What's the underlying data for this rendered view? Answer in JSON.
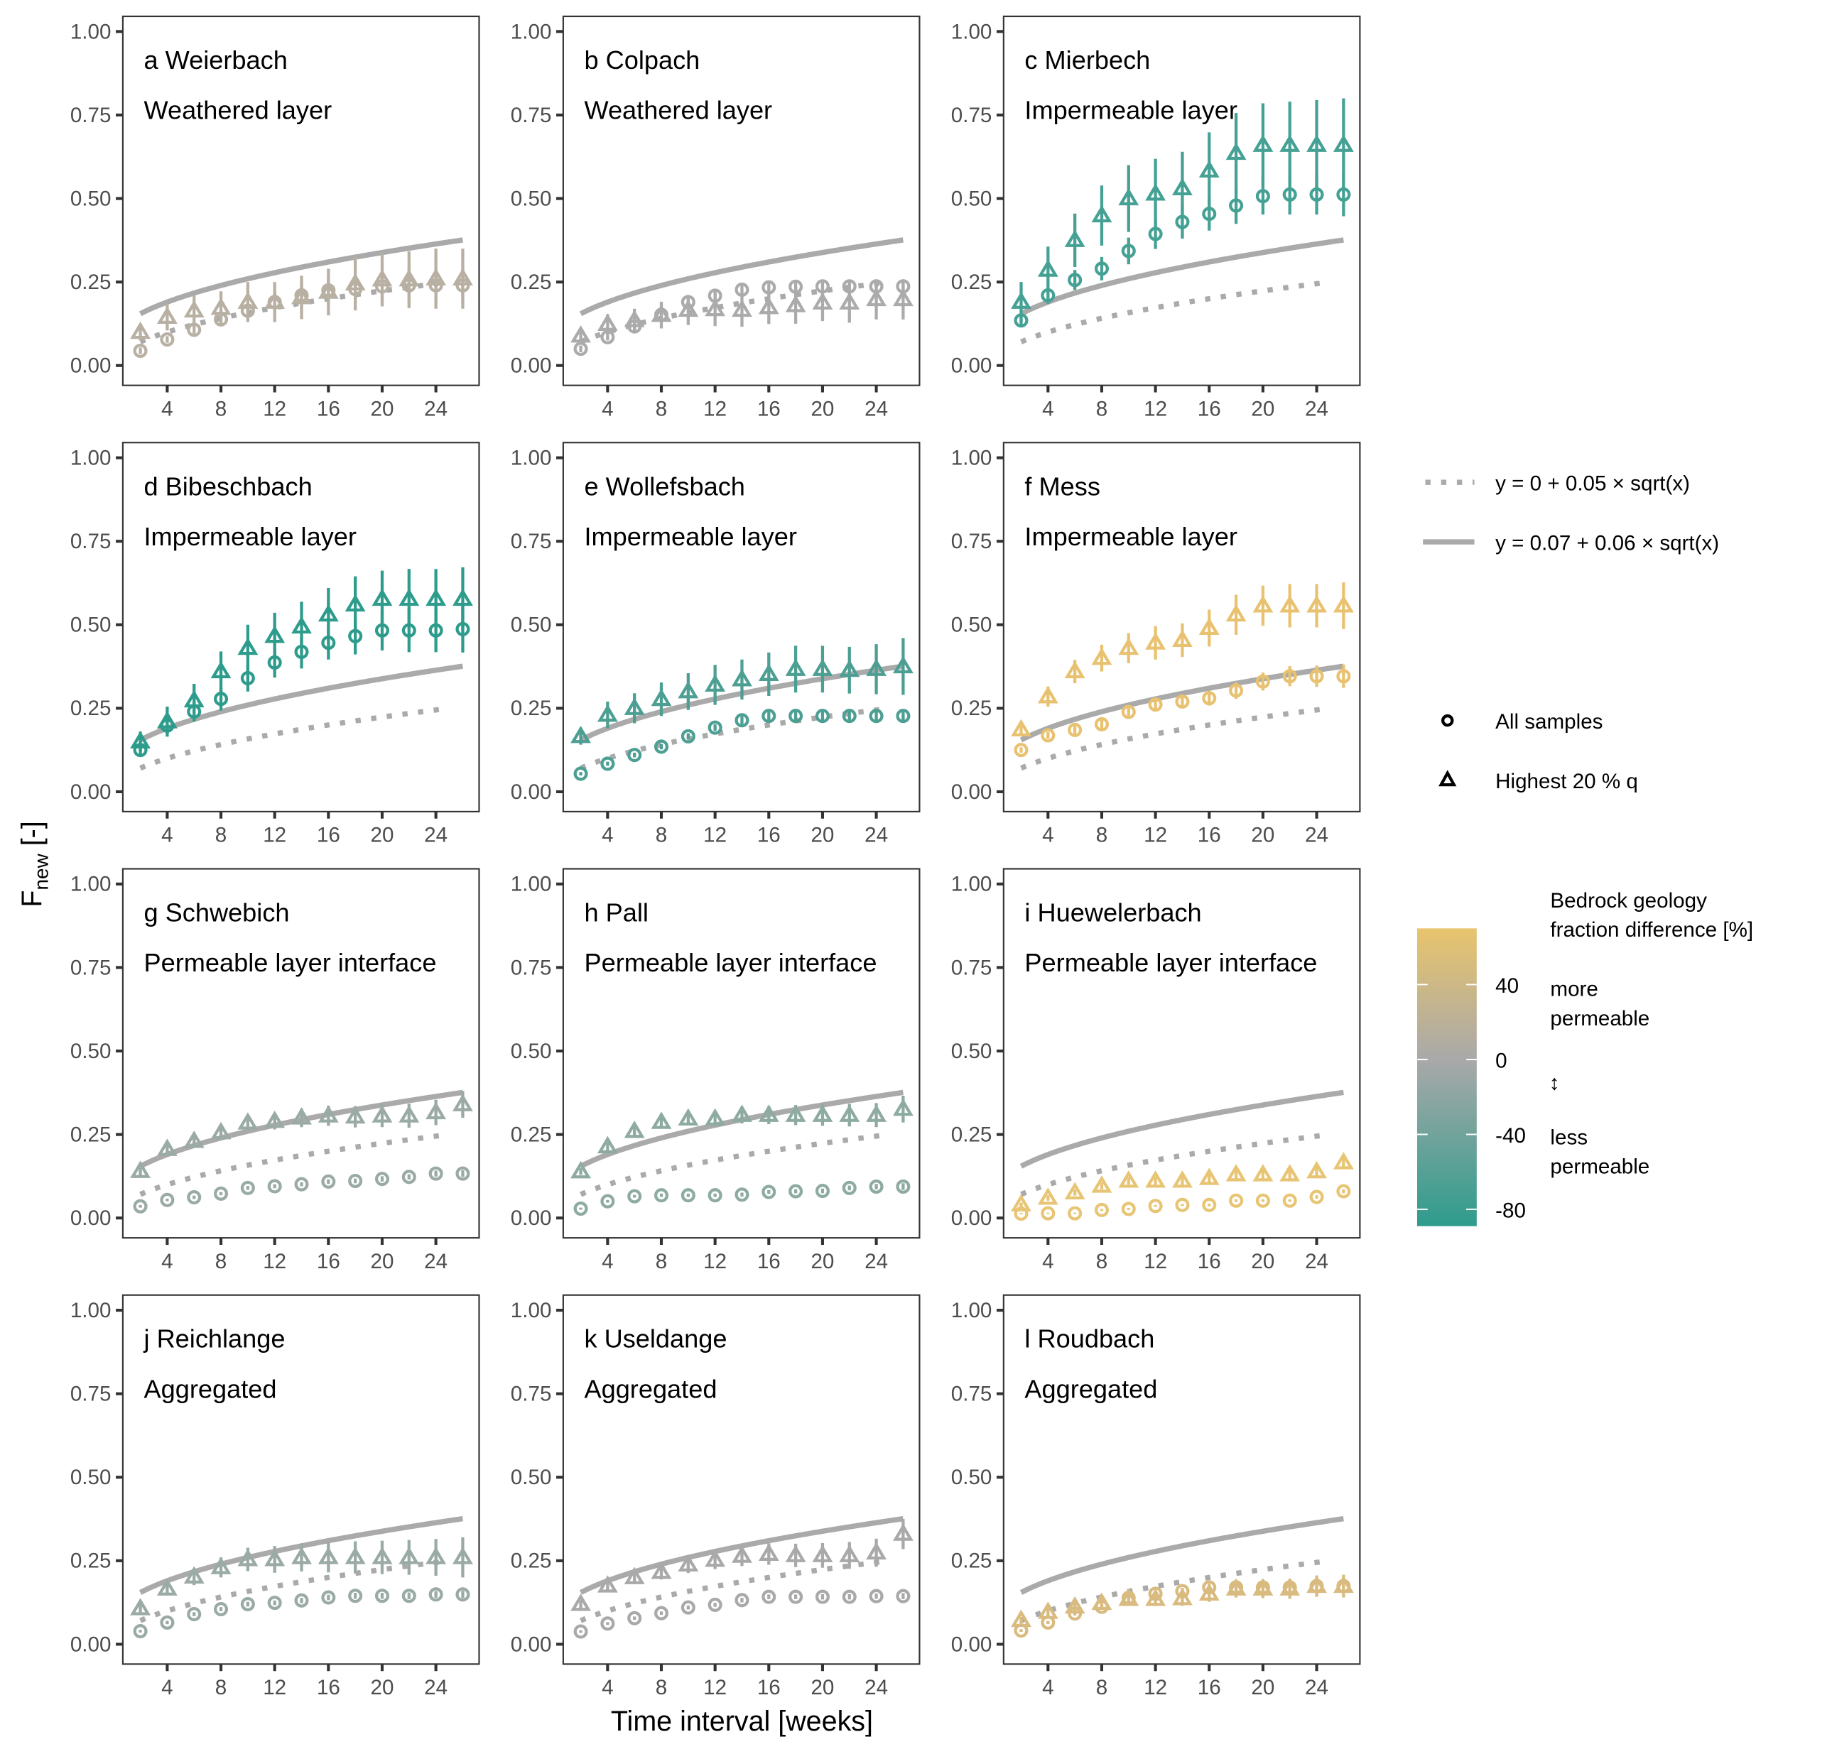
{
  "figure": {
    "ylabel_main": "F",
    "ylabel_sub": "new",
    "ylabel_unit": " [-]",
    "xlabel": "Time interval [weeks]"
  },
  "legend": {
    "fits": [
      {
        "label": "y = 0 + 0.05 × sqrt(x)",
        "style": "dotted",
        "intercept": 0,
        "slope": 0.05
      },
      {
        "label": "y = 0.07 + 0.06 × sqrt(x)",
        "style": "solid",
        "intercept": 0.07,
        "slope": 0.06
      }
    ],
    "shapes": [
      {
        "label": "All samples",
        "shape": "circle"
      },
      {
        "label": "Highest 20 % q",
        "shape": "triangle"
      }
    ],
    "colorbar": {
      "title_line1": "Bedrock geology",
      "title_line2": "fraction difference [%]",
      "ticks": [
        "40",
        "0",
        "-40",
        "-80"
      ],
      "tick_values": [
        40,
        0,
        -40,
        -80
      ],
      "range": [
        -89,
        70
      ],
      "colors": {
        "high": "#e8c46c",
        "mid": "#a9a9a9",
        "low": "#2e9c8c"
      },
      "annotation_more_1": "more",
      "annotation_more_2": "permeable",
      "arrow": "↕",
      "annotation_less_1": "less",
      "annotation_less_2": "permeable"
    }
  },
  "chart_data": {
    "type": "scatter",
    "xlabel": "Time interval [weeks]",
    "ylabel": "F_new [-]",
    "xlim": [
      1,
      27
    ],
    "ylim": [
      -0.05,
      1.05
    ],
    "x_ticks": [
      4,
      8,
      12,
      16,
      20,
      24
    ],
    "y_ticks": [
      "0.00",
      "0.25",
      "0.50",
      "0.75",
      "1.00"
    ],
    "y_tick_values": [
      0,
      0.25,
      0.5,
      0.75,
      1.0
    ],
    "x": [
      2,
      4,
      6,
      8,
      10,
      12,
      14,
      16,
      18,
      20,
      22,
      24,
      26
    ],
    "reference_lines": [
      {
        "name": "y = 0 + 0.05 × sqrt(x)",
        "style": "dotted",
        "intercept": 0,
        "slope": 0.05,
        "x_range": [
          2,
          25
        ]
      },
      {
        "name": "y = 0.07 + 0.06 × sqrt(x)",
        "style": "solid",
        "intercept": 0.07,
        "slope": 0.06,
        "x_range": [
          2,
          26
        ]
      }
    ],
    "panels": [
      {
        "id": "a",
        "title": "a Weierbach",
        "subtitle": "Weathered layer",
        "color": "#b8b0a3",
        "all_samples": [
          0.044,
          0.078,
          0.107,
          0.138,
          0.164,
          0.19,
          0.21,
          0.225,
          0.229,
          0.237,
          0.24,
          0.24,
          0.24
        ],
        "all_err": [
          0.01,
          0.01,
          0.015,
          0.02,
          0.025,
          0.03,
          0.04,
          0.04,
          0.045,
          0.045,
          0.05,
          0.05,
          0.05
        ],
        "highest_20": [
          0.1,
          0.145,
          0.164,
          0.172,
          0.19,
          0.19,
          0.204,
          0.22,
          0.245,
          0.257,
          0.257,
          0.26,
          0.26
        ],
        "highest_err": [
          0.025,
          0.04,
          0.045,
          0.05,
          0.06,
          0.06,
          0.065,
          0.07,
          0.08,
          0.08,
          0.085,
          0.09,
          0.09
        ]
      },
      {
        "id": "b",
        "title": "b Colpach",
        "subtitle": "Weathered layer",
        "color": "#ababab",
        "all_samples": [
          0.05,
          0.085,
          0.117,
          0.152,
          0.19,
          0.209,
          0.227,
          0.234,
          0.236,
          0.237,
          0.237,
          0.237,
          0.237
        ],
        "all_err": [
          0.01,
          0.01,
          0.012,
          0.015,
          0.015,
          0.018,
          0.02,
          0.02,
          0.02,
          0.02,
          0.02,
          0.02,
          0.02
        ],
        "highest_20": [
          0.089,
          0.124,
          0.135,
          0.151,
          0.166,
          0.168,
          0.166,
          0.174,
          0.18,
          0.188,
          0.188,
          0.198,
          0.198
        ],
        "highest_err": [
          0.02,
          0.03,
          0.035,
          0.04,
          0.045,
          0.05,
          0.05,
          0.05,
          0.055,
          0.055,
          0.06,
          0.06,
          0.06
        ]
      },
      {
        "id": "c",
        "title": "c Mierbech",
        "subtitle": "Impermeable layer",
        "color": "#45a194",
        "all_samples": [
          0.135,
          0.21,
          0.256,
          0.29,
          0.343,
          0.394,
          0.43,
          0.454,
          0.479,
          0.507,
          0.512,
          0.512,
          0.512
        ],
        "all_err": [
          0.02,
          0.025,
          0.03,
          0.035,
          0.04,
          0.045,
          0.05,
          0.05,
          0.055,
          0.055,
          0.06,
          0.06,
          0.065
        ],
        "highest_20": [
          0.19,
          0.286,
          0.375,
          0.449,
          0.5,
          0.514,
          0.53,
          0.583,
          0.636,
          0.66,
          0.66,
          0.66,
          0.66
        ],
        "highest_err": [
          0.06,
          0.07,
          0.08,
          0.09,
          0.1,
          0.105,
          0.11,
          0.115,
          0.12,
          0.125,
          0.13,
          0.135,
          0.14
        ]
      },
      {
        "id": "d",
        "title": "d Bibeschbach",
        "subtitle": "Impermeable layer",
        "color": "#2e9c8c",
        "all_samples": [
          0.125,
          0.198,
          0.24,
          0.278,
          0.34,
          0.387,
          0.419,
          0.446,
          0.466,
          0.483,
          0.483,
          0.483,
          0.487
        ],
        "all_err": [
          0.02,
          0.025,
          0.03,
          0.035,
          0.04,
          0.045,
          0.05,
          0.05,
          0.055,
          0.06,
          0.065,
          0.065,
          0.07
        ],
        "highest_20": [
          0.15,
          0.21,
          0.273,
          0.36,
          0.43,
          0.466,
          0.494,
          0.53,
          0.56,
          0.577,
          0.577,
          0.577,
          0.577
        ],
        "highest_err": [
          0.03,
          0.045,
          0.05,
          0.06,
          0.07,
          0.07,
          0.075,
          0.08,
          0.085,
          0.085,
          0.09,
          0.09,
          0.095
        ]
      },
      {
        "id": "e",
        "title": "e Wollefsbach",
        "subtitle": "Impermeable layer",
        "color": "#4c9f92",
        "all_samples": [
          0.054,
          0.084,
          0.11,
          0.135,
          0.166,
          0.192,
          0.214,
          0.227,
          0.227,
          0.227,
          0.227,
          0.227,
          0.227
        ],
        "all_err": [
          0.005,
          0.006,
          0.007,
          0.008,
          0.009,
          0.01,
          0.012,
          0.013,
          0.014,
          0.015,
          0.016,
          0.017,
          0.018
        ],
        "highest_20": [
          0.166,
          0.23,
          0.25,
          0.277,
          0.3,
          0.32,
          0.336,
          0.352,
          0.367,
          0.367,
          0.364,
          0.367,
          0.375
        ],
        "highest_err": [
          0.025,
          0.04,
          0.045,
          0.05,
          0.055,
          0.06,
          0.06,
          0.065,
          0.07,
          0.07,
          0.07,
          0.075,
          0.085
        ]
      },
      {
        "id": "f",
        "title": "f Mess",
        "subtitle": "Impermeable layer",
        "color": "#e8c270",
        "all_samples": [
          0.125,
          0.169,
          0.185,
          0.202,
          0.239,
          0.261,
          0.27,
          0.28,
          0.303,
          0.33,
          0.346,
          0.346,
          0.346
        ],
        "all_err": [
          0.008,
          0.01,
          0.012,
          0.014,
          0.016,
          0.018,
          0.02,
          0.022,
          0.025,
          0.027,
          0.03,
          0.032,
          0.035
        ],
        "highest_20": [
          0.186,
          0.285,
          0.36,
          0.4,
          0.43,
          0.446,
          0.454,
          0.49,
          0.53,
          0.557,
          0.557,
          0.557,
          0.557
        ],
        "highest_err": [
          0.02,
          0.03,
          0.035,
          0.04,
          0.045,
          0.05,
          0.05,
          0.055,
          0.06,
          0.06,
          0.065,
          0.065,
          0.07
        ]
      },
      {
        "id": "g",
        "title": "g Schwebich",
        "subtitle": "Permeable layer interface",
        "color": "#9aaaa4",
        "all_samples": [
          0.035,
          0.054,
          0.062,
          0.073,
          0.09,
          0.095,
          0.101,
          0.109,
          0.111,
          0.117,
          0.123,
          0.133,
          0.133
        ],
        "all_err": [
          0.004,
          0.004,
          0.005,
          0.005,
          0.006,
          0.006,
          0.006,
          0.007,
          0.007,
          0.008,
          0.008,
          0.009,
          0.01
        ],
        "highest_20": [
          0.14,
          0.206,
          0.23,
          0.256,
          0.285,
          0.29,
          0.3,
          0.306,
          0.303,
          0.306,
          0.306,
          0.316,
          0.34
        ],
        "highest_err": [
          0.012,
          0.015,
          0.018,
          0.02,
          0.022,
          0.025,
          0.028,
          0.03,
          0.032,
          0.034,
          0.036,
          0.038,
          0.04
        ]
      },
      {
        "id": "h",
        "title": "h Pall",
        "subtitle": "Permeable layer interface",
        "color": "#8eaba1",
        "all_samples": [
          0.028,
          0.05,
          0.065,
          0.068,
          0.068,
          0.068,
          0.07,
          0.078,
          0.08,
          0.081,
          0.09,
          0.094,
          0.094
        ],
        "all_err": [
          0.003,
          0.004,
          0.004,
          0.005,
          0.005,
          0.005,
          0.006,
          0.006,
          0.006,
          0.007,
          0.007,
          0.008,
          0.01
        ],
        "highest_20": [
          0.139,
          0.214,
          0.26,
          0.287,
          0.297,
          0.297,
          0.308,
          0.308,
          0.308,
          0.308,
          0.308,
          0.308,
          0.326
        ],
        "highest_err": [
          0.01,
          0.012,
          0.015,
          0.018,
          0.02,
          0.022,
          0.025,
          0.027,
          0.03,
          0.032,
          0.034,
          0.036,
          0.04
        ]
      },
      {
        "id": "i",
        "title": "i Huewelerbach",
        "subtitle": "Permeable layer interface",
        "color": "#e8c575",
        "all_samples": [
          0.013,
          0.014,
          0.014,
          0.024,
          0.027,
          0.036,
          0.039,
          0.039,
          0.052,
          0.052,
          0.052,
          0.063,
          0.08
        ],
        "all_err": [
          0.002,
          0.002,
          0.002,
          0.003,
          0.003,
          0.003,
          0.003,
          0.004,
          0.004,
          0.004,
          0.004,
          0.005,
          0.006
        ],
        "highest_20": [
          0.04,
          0.06,
          0.076,
          0.096,
          0.111,
          0.111,
          0.111,
          0.119,
          0.13,
          0.13,
          0.13,
          0.139,
          0.166
        ],
        "highest_err": [
          0.006,
          0.008,
          0.009,
          0.01,
          0.011,
          0.012,
          0.013,
          0.014,
          0.015,
          0.016,
          0.017,
          0.018,
          0.02
        ]
      },
      {
        "id": "j",
        "title": "j Reichlange",
        "subtitle": "Aggregated",
        "color": "#9aaaa4",
        "all_samples": [
          0.039,
          0.065,
          0.09,
          0.105,
          0.12,
          0.124,
          0.131,
          0.14,
          0.145,
          0.145,
          0.145,
          0.149,
          0.149
        ],
        "all_err": [
          0.004,
          0.005,
          0.006,
          0.006,
          0.007,
          0.007,
          0.008,
          0.008,
          0.009,
          0.009,
          0.01,
          0.01,
          0.011
        ],
        "highest_20": [
          0.107,
          0.166,
          0.202,
          0.23,
          0.254,
          0.254,
          0.26,
          0.26,
          0.26,
          0.26,
          0.26,
          0.26,
          0.26
        ],
        "highest_err": [
          0.015,
          0.02,
          0.025,
          0.03,
          0.035,
          0.04,
          0.042,
          0.045,
          0.048,
          0.05,
          0.052,
          0.055,
          0.06
        ]
      },
      {
        "id": "k",
        "title": "k Useldange",
        "subtitle": "Aggregated",
        "color": "#a9a9a9",
        "all_samples": [
          0.038,
          0.062,
          0.078,
          0.093,
          0.11,
          0.118,
          0.132,
          0.142,
          0.142,
          0.142,
          0.142,
          0.144,
          0.144
        ],
        "all_err": [
          0.004,
          0.004,
          0.005,
          0.005,
          0.006,
          0.006,
          0.007,
          0.007,
          0.007,
          0.008,
          0.008,
          0.008,
          0.009
        ],
        "highest_20": [
          0.12,
          0.175,
          0.2,
          0.216,
          0.238,
          0.252,
          0.264,
          0.27,
          0.266,
          0.266,
          0.266,
          0.274,
          0.33
        ],
        "highest_err": [
          0.012,
          0.016,
          0.02,
          0.022,
          0.025,
          0.027,
          0.03,
          0.032,
          0.035,
          0.037,
          0.04,
          0.042,
          0.045
        ]
      },
      {
        "id": "l",
        "title": "l Roudbach",
        "subtitle": "Aggregated",
        "color": "#d9bb80",
        "all_samples": [
          0.041,
          0.065,
          0.092,
          0.112,
          0.139,
          0.151,
          0.159,
          0.17,
          0.17,
          0.17,
          0.17,
          0.174,
          0.174
        ],
        "all_err": [
          0.004,
          0.005,
          0.006,
          0.007,
          0.008,
          0.009,
          0.01,
          0.011,
          0.012,
          0.013,
          0.014,
          0.015,
          0.016
        ],
        "highest_20": [
          0.072,
          0.096,
          0.112,
          0.123,
          0.135,
          0.135,
          0.137,
          0.151,
          0.166,
          0.166,
          0.166,
          0.174,
          0.174
        ],
        "highest_err": [
          0.01,
          0.012,
          0.014,
          0.016,
          0.018,
          0.02,
          0.022,
          0.024,
          0.026,
          0.028,
          0.03,
          0.032,
          0.034
        ]
      }
    ]
  }
}
